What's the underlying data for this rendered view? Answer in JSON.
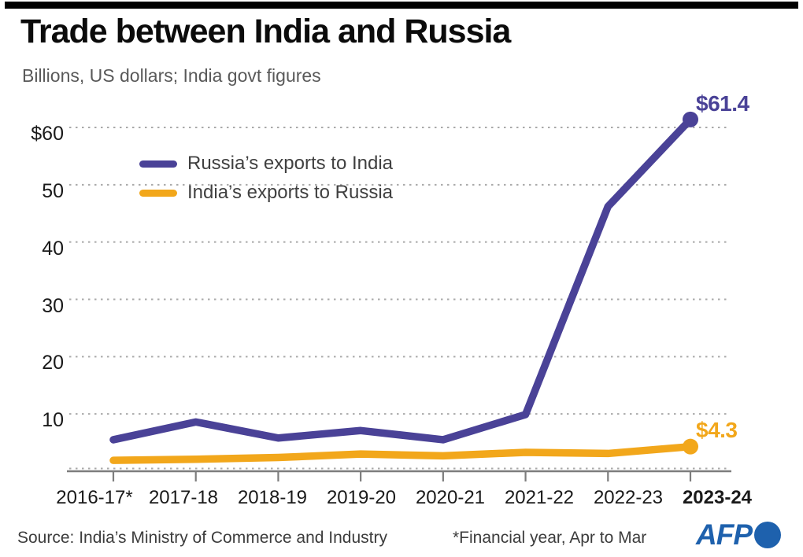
{
  "header": {
    "title": "Trade between India and Russia",
    "subtitle": "Billions, US dollars; India govt figures"
  },
  "chart_data": {
    "type": "line",
    "categories": [
      "2016-17*",
      "2017-18",
      "2018-19",
      "2019-20",
      "2020-21",
      "2021-22",
      "2022-23",
      "2023-24"
    ],
    "series": [
      {
        "name": "Russia’s exports to India",
        "color": "#4a4297",
        "values": [
          5.5,
          8.6,
          5.8,
          7.1,
          5.5,
          9.9,
          46.2,
          61.4
        ],
        "end_label": "$61.4"
      },
      {
        "name": "India’s exports to Russia",
        "color": "#f2a71b",
        "values": [
          1.9,
          2.1,
          2.4,
          3.0,
          2.7,
          3.3,
          3.1,
          4.3
        ],
        "end_label": "$4.3"
      }
    ],
    "title": "Trade between India and Russia",
    "subtitle": "Billions, US dollars; India govt figures",
    "xlabel": "",
    "ylabel": "Billions, US dollars",
    "ytick_labels": [
      "$60",
      "50",
      "40",
      "30",
      "20",
      "10"
    ],
    "ytick_values": [
      60,
      50,
      40,
      30,
      20,
      10
    ],
    "ylim": [
      0,
      64
    ],
    "grid": "horizontal dotted",
    "legend_position": "top-left inside plot"
  },
  "colors": {
    "russia_line": "#4a4297",
    "india_line": "#f2a71b",
    "gridline": "#a9a9a9",
    "axis": "#7d7d7d",
    "afp_blue": "#1e61ad",
    "top_bar": "#000000"
  },
  "footer": {
    "source": "Source: India’s Ministry of Commerce and Industry",
    "footnote": "*Financial year, Apr to Mar",
    "logo": "AFP"
  }
}
